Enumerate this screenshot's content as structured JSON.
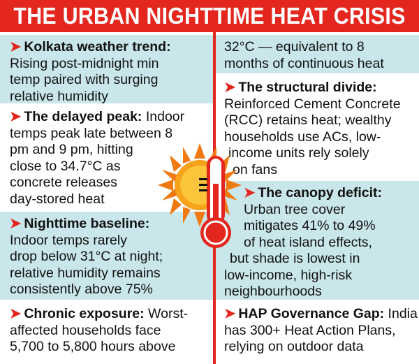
{
  "title": "THE URBAN NIGHTTIME HEAT CRISIS",
  "colors": {
    "accent": "#e3271f",
    "panel": "#c9e6ea"
  },
  "left": [
    {
      "heading": "Kolkata weather trend:",
      "lines": [
        "Rising post-midnight min",
        "temp paired with surging",
        "relative humidity"
      ]
    },
    {
      "heading": "The delayed peak:",
      "first_rest": " Indoor",
      "lines": [
        "temps peak late between 8",
        "pm and 9 pm, hitting",
        "close to 34.7°C as",
        "concrete releases",
        "day-stored heat"
      ]
    },
    {
      "heading": "Nighttime baseline:",
      "lines": [
        "Indoor temps rarely",
        "drop below 31°C at night;",
        "relative humidity remains",
        "consistently above 75%"
      ]
    },
    {
      "heading": "Chronic exposure:",
      "first_rest": " Worst-",
      "lines": [
        "affected households face",
        "5,700 to 5,800 hours above"
      ]
    }
  ],
  "right": [
    {
      "lines": [
        "32°C — equivalent to 8",
        "months of continuous heat"
      ]
    },
    {
      "heading": "The structural divide:",
      "lines": [
        "Reinforced Cement Concrete",
        "(RCC) retains heat; wealthy",
        "households use ACs, low-",
        "income units rely solely",
        "on fans"
      ]
    },
    {
      "heading": "The canopy deficit:",
      "lines": [
        "Urban tree cover",
        "mitigates 41% to 49%",
        "of heat island effects,",
        "but shade is lowest in",
        "low-income, high-risk",
        "neighbourhoods"
      ]
    },
    {
      "heading": "HAP Governance Gap:",
      "first_rest": " India",
      "lines": [
        "has 300+ Heat Action Plans,",
        "relying on outdoor data"
      ]
    }
  ],
  "icons": {
    "arrow": "arrow-icon",
    "sun": "sun-icon",
    "thermometer": "thermometer-icon"
  }
}
